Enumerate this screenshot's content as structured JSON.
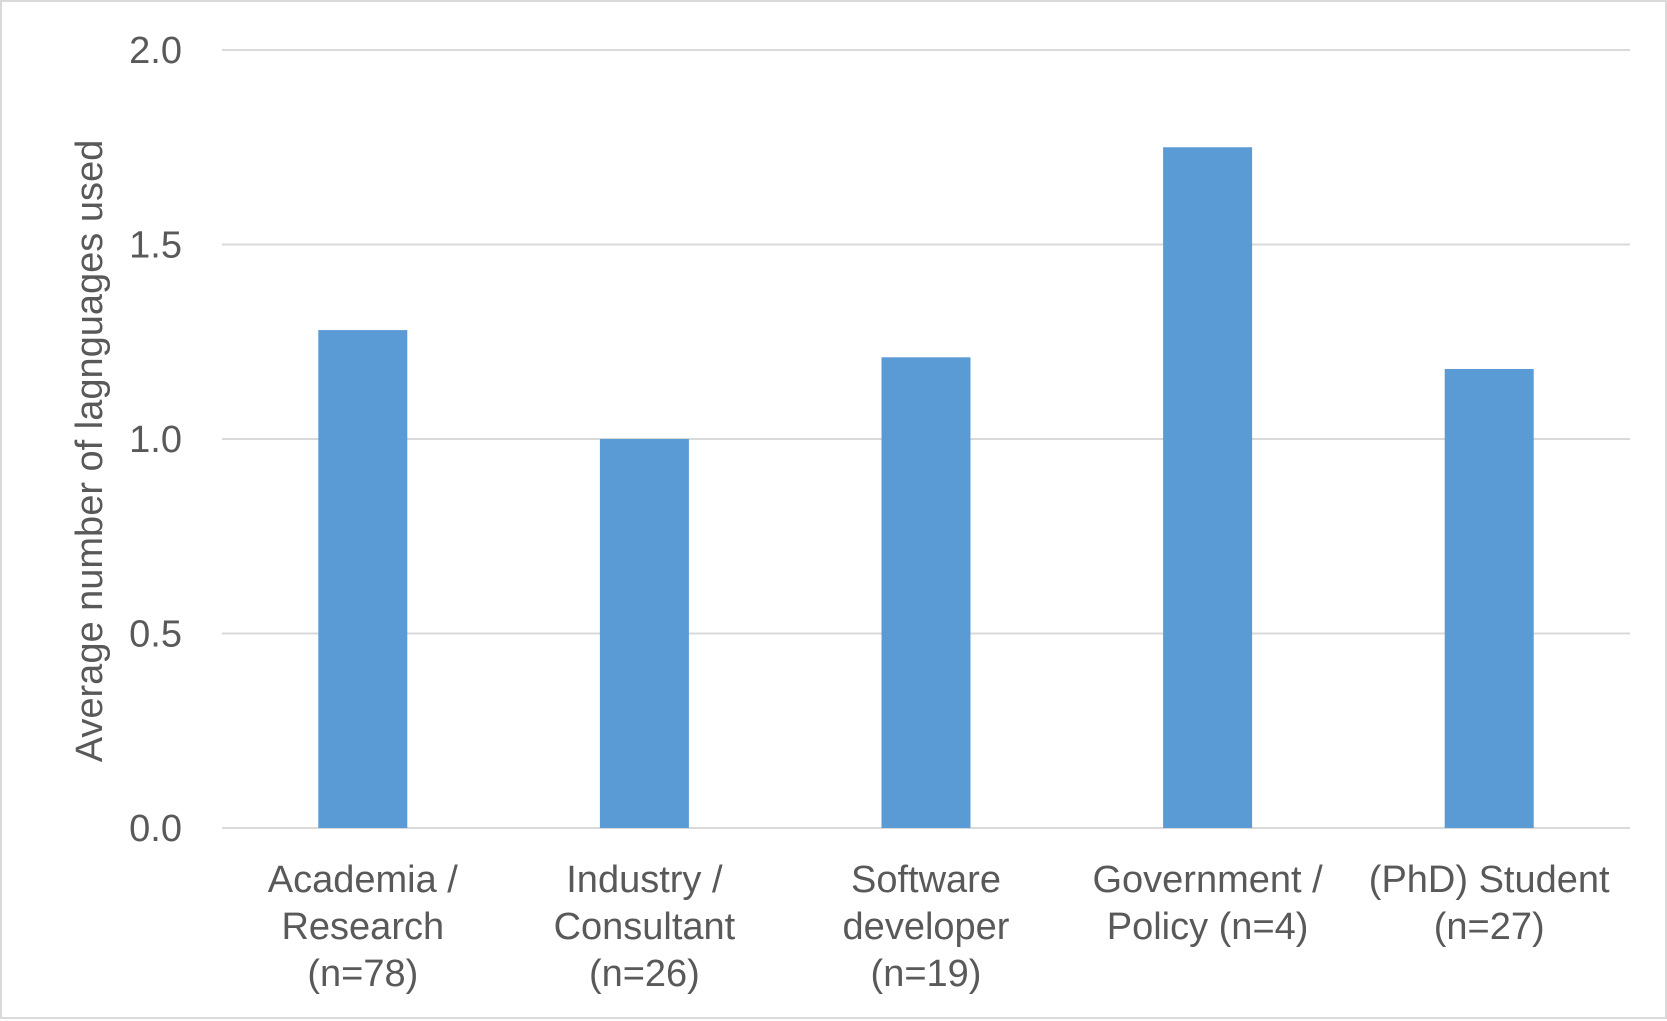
{
  "chart_data": {
    "type": "bar",
    "title": "",
    "xlabel": "",
    "ylabel": "Average number of lagnguages used",
    "ylim": [
      0,
      2.0
    ],
    "yticks": [
      "0.0",
      "0.5",
      "1.0",
      "1.5",
      "2.0"
    ],
    "grid": true,
    "legend": "none",
    "bar_color": "#5b9bd5",
    "categories": [
      [
        "Academia /",
        "Research",
        "(n=78)"
      ],
      [
        "Industry /",
        "Consultant",
        "(n=26)"
      ],
      [
        "Software",
        "developer",
        "(n=19)"
      ],
      [
        "Government /",
        "Policy (n=4)"
      ],
      [
        "(PhD) Student",
        "(n=27)"
      ]
    ],
    "values": [
      1.28,
      1.0,
      1.21,
      1.75,
      1.18
    ]
  }
}
